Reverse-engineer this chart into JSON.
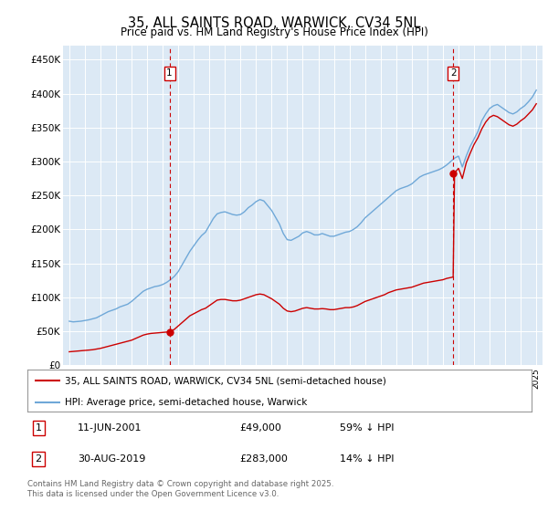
{
  "title": "35, ALL SAINTS ROAD, WARWICK, CV34 5NL",
  "subtitle": "Price paid vs. HM Land Registry's House Price Index (HPI)",
  "ylabel_ticks": [
    "£0",
    "£50K",
    "£100K",
    "£150K",
    "£200K",
    "£250K",
    "£300K",
    "£350K",
    "£400K",
    "£450K"
  ],
  "ytick_values": [
    0,
    50000,
    100000,
    150000,
    200000,
    250000,
    300000,
    350000,
    400000,
    450000
  ],
  "ylim": [
    0,
    470000
  ],
  "xlim_start": 1994.6,
  "xlim_end": 2025.4,
  "background_color": "#dce9f5",
  "fig_bg_color": "#ffffff",
  "red_line_color": "#cc0000",
  "blue_line_color": "#6fa8d8",
  "marker1_x": 2001.44,
  "marker1_y": 49000,
  "marker2_x": 2019.66,
  "marker2_y": 283000,
  "transactions": [
    {
      "label": "1",
      "date": "11-JUN-2001",
      "price": "£49,000",
      "hpi": "59% ↓ HPI"
    },
    {
      "label": "2",
      "date": "30-AUG-2019",
      "price": "£283,000",
      "hpi": "14% ↓ HPI"
    }
  ],
  "legend_line1": "35, ALL SAINTS ROAD, WARWICK, CV34 5NL (semi-detached house)",
  "legend_line2": "HPI: Average price, semi-detached house, Warwick",
  "footer": "Contains HM Land Registry data © Crown copyright and database right 2025.\nThis data is licensed under the Open Government Licence v3.0.",
  "hpi_data_x": [
    1995.0,
    1995.25,
    1995.5,
    1995.75,
    1996.0,
    1996.25,
    1996.5,
    1996.75,
    1997.0,
    1997.25,
    1997.5,
    1997.75,
    1998.0,
    1998.25,
    1998.5,
    1998.75,
    1999.0,
    1999.25,
    1999.5,
    1999.75,
    2000.0,
    2000.25,
    2000.5,
    2000.75,
    2001.0,
    2001.25,
    2001.5,
    2001.75,
    2002.0,
    2002.25,
    2002.5,
    2002.75,
    2003.0,
    2003.25,
    2003.5,
    2003.75,
    2004.0,
    2004.25,
    2004.5,
    2004.75,
    2005.0,
    2005.25,
    2005.5,
    2005.75,
    2006.0,
    2006.25,
    2006.5,
    2006.75,
    2007.0,
    2007.25,
    2007.5,
    2007.75,
    2008.0,
    2008.25,
    2008.5,
    2008.75,
    2009.0,
    2009.25,
    2009.5,
    2009.75,
    2010.0,
    2010.25,
    2010.5,
    2010.75,
    2011.0,
    2011.25,
    2011.5,
    2011.75,
    2012.0,
    2012.25,
    2012.5,
    2012.75,
    2013.0,
    2013.25,
    2013.5,
    2013.75,
    2014.0,
    2014.25,
    2014.5,
    2014.75,
    2015.0,
    2015.25,
    2015.5,
    2015.75,
    2016.0,
    2016.25,
    2016.5,
    2016.75,
    2017.0,
    2017.25,
    2017.5,
    2017.75,
    2018.0,
    2018.25,
    2018.5,
    2018.75,
    2019.0,
    2019.25,
    2019.5,
    2019.75,
    2020.0,
    2020.25,
    2020.5,
    2020.75,
    2021.0,
    2021.25,
    2021.5,
    2021.75,
    2022.0,
    2022.25,
    2022.5,
    2022.75,
    2023.0,
    2023.25,
    2023.5,
    2023.75,
    2024.0,
    2024.25,
    2024.5,
    2024.75,
    2025.0
  ],
  "hpi_data_y": [
    65000,
    64000,
    64500,
    65000,
    66000,
    67000,
    68500,
    70000,
    73000,
    76000,
    79000,
    81000,
    83000,
    86000,
    88000,
    90000,
    94000,
    99000,
    104000,
    109000,
    112000,
    114000,
    116000,
    117000,
    119000,
    122000,
    126000,
    131000,
    138000,
    148000,
    158000,
    168000,
    176000,
    184000,
    191000,
    196000,
    206000,
    216000,
    223000,
    225000,
    226000,
    224000,
    222000,
    221000,
    222000,
    226000,
    232000,
    236000,
    241000,
    244000,
    242000,
    235000,
    228000,
    218000,
    208000,
    194000,
    185000,
    184000,
    187000,
    190000,
    195000,
    197000,
    195000,
    192000,
    192000,
    194000,
    192000,
    190000,
    190000,
    192000,
    194000,
    196000,
    197000,
    200000,
    204000,
    210000,
    217000,
    222000,
    227000,
    232000,
    237000,
    242000,
    247000,
    252000,
    257000,
    260000,
    262000,
    264000,
    267000,
    272000,
    277000,
    280000,
    282000,
    284000,
    286000,
    288000,
    291000,
    295000,
    300000,
    305000,
    308000,
    292000,
    308000,
    322000,
    333000,
    344000,
    360000,
    370000,
    378000,
    382000,
    384000,
    380000,
    376000,
    372000,
    370000,
    373000,
    378000,
    382000,
    388000,
    395000,
    405000
  ],
  "red_data_x": [
    1995.0,
    1995.25,
    1995.5,
    1995.75,
    1996.0,
    1996.25,
    1996.5,
    1996.75,
    1997.0,
    1997.25,
    1997.5,
    1997.75,
    1998.0,
    1998.25,
    1998.5,
    1998.75,
    1999.0,
    1999.25,
    1999.5,
    1999.75,
    2000.0,
    2000.25,
    2000.5,
    2000.75,
    2001.0,
    2001.25,
    2001.44,
    2001.75,
    2002.0,
    2002.25,
    2002.5,
    2002.75,
    2003.0,
    2003.25,
    2003.5,
    2003.75,
    2004.0,
    2004.25,
    2004.5,
    2004.75,
    2005.0,
    2005.25,
    2005.5,
    2005.75,
    2006.0,
    2006.25,
    2006.5,
    2006.75,
    2007.0,
    2007.25,
    2007.5,
    2007.75,
    2008.0,
    2008.25,
    2008.5,
    2008.75,
    2009.0,
    2009.25,
    2009.5,
    2009.75,
    2010.0,
    2010.25,
    2010.5,
    2010.75,
    2011.0,
    2011.25,
    2011.5,
    2011.75,
    2012.0,
    2012.25,
    2012.5,
    2012.75,
    2013.0,
    2013.25,
    2013.5,
    2013.75,
    2014.0,
    2014.25,
    2014.5,
    2014.75,
    2015.0,
    2015.25,
    2015.5,
    2015.75,
    2016.0,
    2016.25,
    2016.5,
    2016.75,
    2017.0,
    2017.25,
    2017.5,
    2017.75,
    2018.0,
    2018.25,
    2018.5,
    2018.75,
    2019.0,
    2019.25,
    2019.66,
    2019.75,
    2020.0,
    2020.25,
    2020.5,
    2020.75,
    2021.0,
    2021.25,
    2021.5,
    2021.75,
    2022.0,
    2022.25,
    2022.5,
    2022.75,
    2023.0,
    2023.25,
    2023.5,
    2023.75,
    2024.0,
    2024.25,
    2024.5,
    2024.75,
    2025.0
  ],
  "red_data_y": [
    20000,
    20500,
    21000,
    21500,
    22000,
    22500,
    23000,
    24000,
    25000,
    26500,
    28000,
    29500,
    31000,
    32500,
    34000,
    35500,
    37000,
    39500,
    42000,
    44500,
    46000,
    47000,
    47500,
    48000,
    48500,
    49000,
    49000,
    53000,
    58000,
    63000,
    68000,
    73000,
    76000,
    79000,
    82000,
    84000,
    88000,
    92000,
    96000,
    97000,
    97000,
    96000,
    95000,
    95000,
    96000,
    98000,
    100000,
    102000,
    104000,
    105000,
    104000,
    101000,
    98000,
    94000,
    90000,
    84000,
    80000,
    79000,
    80000,
    82000,
    84000,
    85000,
    84000,
    83000,
    83000,
    83500,
    83000,
    82000,
    82000,
    83000,
    84000,
    85000,
    85000,
    86000,
    88000,
    91000,
    94000,
    96000,
    98000,
    100000,
    102000,
    104000,
    107000,
    109000,
    111000,
    112000,
    113000,
    114000,
    115000,
    117000,
    119000,
    121000,
    122000,
    123000,
    124000,
    125000,
    126000,
    128000,
    130000,
    283000,
    290000,
    275000,
    298000,
    312000,
    325000,
    335000,
    348000,
    358000,
    365000,
    368000,
    366000,
    362000,
    358000,
    354000,
    352000,
    355000,
    360000,
    364000,
    370000,
    376000,
    385000
  ]
}
